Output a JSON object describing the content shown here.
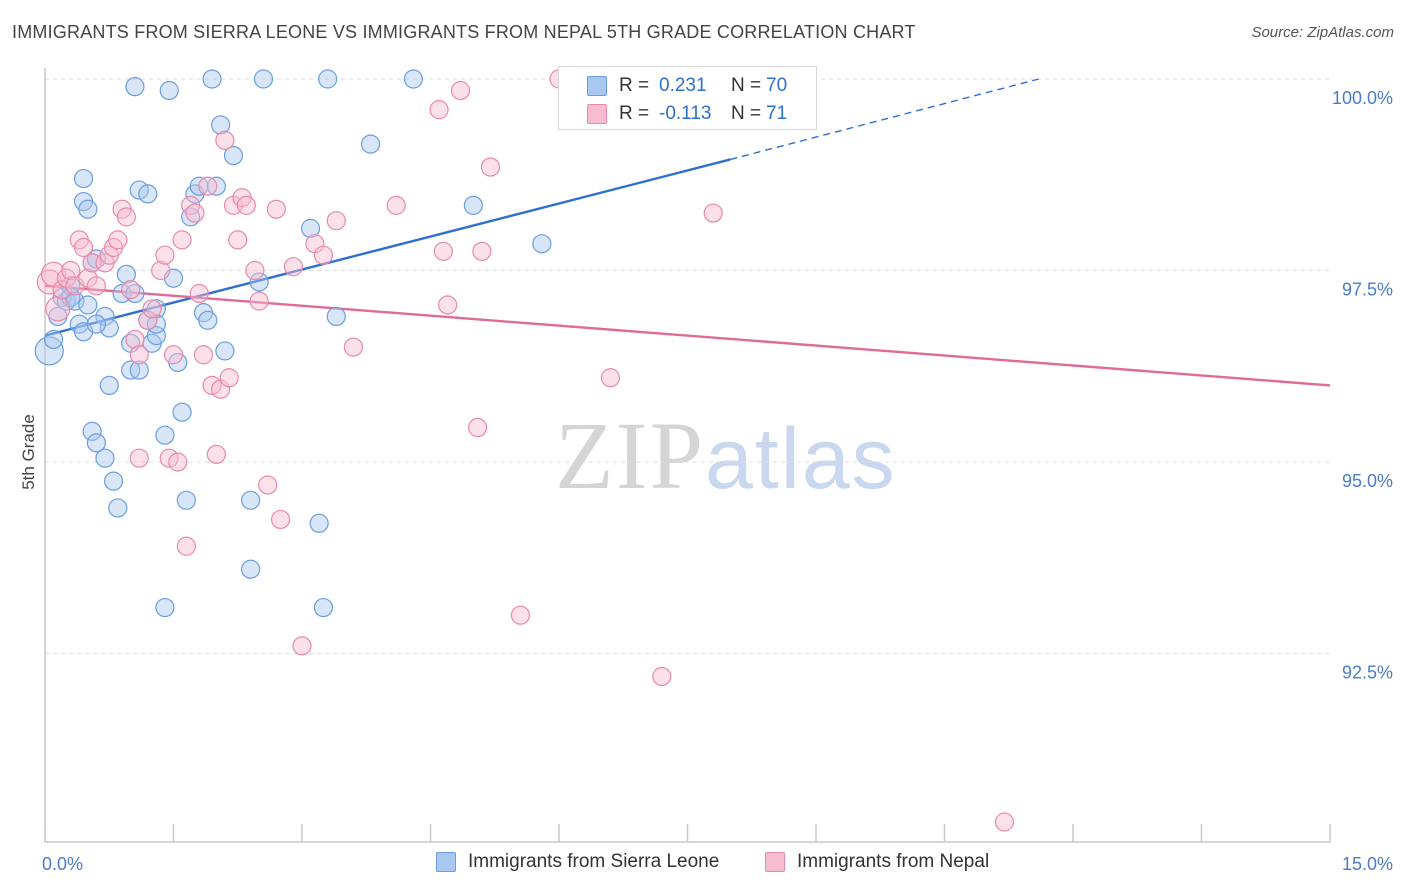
{
  "title": "IMMIGRANTS FROM SIERRA LEONE VS IMMIGRANTS FROM NEPAL 5TH GRADE CORRELATION CHART",
  "source": "Source: ZipAtlas.com",
  "watermark": {
    "zip": "ZIP",
    "atlas": "atlas"
  },
  "legend": {
    "rows": [
      {
        "r_label": "R =",
        "r_value": "0.231",
        "n_label": "N =",
        "n_value": "70",
        "color": "#a9c8f0",
        "border": "#6a9ee0"
      },
      {
        "r_label": "R =",
        "r_value": "-0.113",
        "n_label": "N =",
        "n_value": "71",
        "color": "#f8bcd0",
        "border": "#e88aaa"
      }
    ]
  },
  "bottom_legend": [
    {
      "label": "Immigrants from Sierra Leone",
      "color": "#a9c8f0",
      "border": "#6a9ee0"
    },
    {
      "label": "Immigrants from Nepal",
      "color": "#f8bcd0",
      "border": "#e88aaa"
    }
  ],
  "chart_data": {
    "type": "scatter",
    "title": "IMMIGRANTS FROM SIERRA LEONE VS IMMIGRANTS FROM NEPAL 5TH GRADE CORRELATION CHART",
    "xlabel": "",
    "ylabel": "5th Grade",
    "xlim": [
      0.0,
      15.0
    ],
    "ylim": [
      90.0,
      100.2
    ],
    "x_tick_labels": [
      {
        "value": 0.0,
        "label": "0.0%"
      },
      {
        "value": 15.0,
        "label": "15.0%"
      }
    ],
    "y_tick_labels": [
      {
        "value": 100.0,
        "label": "100.0%"
      },
      {
        "value": 97.5,
        "label": "97.5%"
      },
      {
        "value": 95.0,
        "label": "95.0%"
      },
      {
        "value": 92.5,
        "label": "92.5%"
      }
    ],
    "x_minor_ticks": [
      0,
      1.5,
      3,
      4.5,
      6,
      7.5,
      9,
      10.5,
      12,
      13.5,
      15
    ],
    "grid": true,
    "legend_position": "top-center",
    "series": [
      {
        "name": "Immigrants from Sierra Leone",
        "color": "#6a9ee0",
        "fill": "rgba(169,200,240,0.45)",
        "trend": {
          "x": [
            0.0,
            8.0
          ],
          "y": [
            96.65,
            98.95
          ],
          "dashed_extension": {
            "x": [
              8.0,
              11.6
            ],
            "y": [
              98.95,
              100.0
            ]
          },
          "color": "#2f6fd0"
        },
        "points": [
          [
            0.05,
            96.45
          ],
          [
            0.1,
            96.6
          ],
          [
            0.15,
            96.9
          ],
          [
            0.2,
            97.15
          ],
          [
            0.25,
            97.1
          ],
          [
            0.3,
            97.3
          ],
          [
            0.3,
            97.15
          ],
          [
            0.35,
            97.1
          ],
          [
            0.4,
            96.8
          ],
          [
            0.45,
            96.7
          ],
          [
            0.5,
            97.05
          ],
          [
            0.55,
            95.4
          ],
          [
            0.6,
            95.25
          ],
          [
            0.45,
            98.7
          ],
          [
            0.45,
            98.4
          ],
          [
            0.5,
            98.3
          ],
          [
            0.55,
            97.6
          ],
          [
            0.6,
            97.65
          ],
          [
            0.7,
            96.9
          ],
          [
            0.75,
            96.75
          ],
          [
            0.6,
            96.8
          ],
          [
            0.7,
            95.05
          ],
          [
            0.75,
            96.0
          ],
          [
            0.8,
            94.75
          ],
          [
            0.85,
            94.4
          ],
          [
            0.9,
            97.2
          ],
          [
            0.95,
            97.45
          ],
          [
            1.0,
            96.55
          ],
          [
            1.0,
            96.2
          ],
          [
            1.05,
            97.2
          ],
          [
            1.1,
            96.2
          ],
          [
            1.05,
            99.9
          ],
          [
            1.1,
            98.55
          ],
          [
            1.2,
            98.5
          ],
          [
            1.25,
            96.55
          ],
          [
            1.3,
            96.65
          ],
          [
            1.3,
            97.0
          ],
          [
            1.2,
            96.85
          ],
          [
            1.3,
            96.8
          ],
          [
            1.4,
            93.1
          ],
          [
            1.4,
            95.35
          ],
          [
            1.45,
            99.85
          ],
          [
            1.5,
            97.4
          ],
          [
            1.55,
            96.3
          ],
          [
            1.6,
            95.65
          ],
          [
            1.65,
            94.5
          ],
          [
            1.7,
            98.2
          ],
          [
            1.75,
            98.5
          ],
          [
            1.8,
            98.6
          ],
          [
            1.85,
            96.95
          ],
          [
            1.9,
            96.85
          ],
          [
            1.95,
            100.0
          ],
          [
            2.0,
            98.6
          ],
          [
            2.05,
            99.4
          ],
          [
            2.1,
            96.45
          ],
          [
            2.2,
            99.0
          ],
          [
            2.4,
            93.6
          ],
          [
            2.5,
            97.35
          ],
          [
            2.55,
            100.0
          ],
          [
            2.4,
            94.5
          ],
          [
            3.1,
            98.05
          ],
          [
            3.2,
            94.2
          ],
          [
            3.25,
            93.1
          ],
          [
            3.4,
            96.9
          ],
          [
            3.3,
            100.0
          ],
          [
            3.8,
            99.15
          ],
          [
            4.3,
            100.0
          ],
          [
            5.0,
            98.35
          ],
          [
            5.8,
            97.85
          ],
          [
            6.1,
            99.55
          ]
        ]
      },
      {
        "name": "Immigrants from Nepal",
        "color": "#e88aaa",
        "fill": "rgba(248,188,208,0.45)",
        "trend": {
          "x": [
            0.0,
            15.0
          ],
          "y": [
            97.3,
            96.0
          ],
          "color": "#e06a98"
        },
        "points": [
          [
            0.05,
            97.35
          ],
          [
            0.1,
            97.45
          ],
          [
            0.15,
            97.0
          ],
          [
            0.2,
            97.25
          ],
          [
            0.25,
            97.4
          ],
          [
            0.3,
            97.5
          ],
          [
            0.35,
            97.3
          ],
          [
            0.4,
            97.9
          ],
          [
            0.45,
            97.8
          ],
          [
            0.5,
            97.4
          ],
          [
            0.55,
            97.6
          ],
          [
            0.6,
            97.3
          ],
          [
            0.7,
            97.6
          ],
          [
            0.75,
            97.7
          ],
          [
            0.8,
            97.8
          ],
          [
            0.85,
            97.9
          ],
          [
            0.9,
            98.3
          ],
          [
            0.95,
            98.2
          ],
          [
            1.0,
            97.25
          ],
          [
            1.05,
            96.6
          ],
          [
            1.1,
            96.4
          ],
          [
            1.1,
            95.05
          ],
          [
            1.2,
            96.85
          ],
          [
            1.25,
            97.0
          ],
          [
            1.35,
            97.5
          ],
          [
            1.4,
            97.7
          ],
          [
            1.45,
            95.05
          ],
          [
            1.5,
            96.4
          ],
          [
            1.55,
            95.0
          ],
          [
            1.6,
            97.9
          ],
          [
            1.65,
            93.9
          ],
          [
            1.7,
            98.35
          ],
          [
            1.75,
            98.25
          ],
          [
            1.8,
            97.2
          ],
          [
            1.85,
            96.4
          ],
          [
            1.9,
            98.6
          ],
          [
            1.95,
            96.0
          ],
          [
            2.0,
            95.1
          ],
          [
            2.05,
            95.95
          ],
          [
            2.1,
            99.2
          ],
          [
            2.15,
            96.1
          ],
          [
            2.2,
            98.35
          ],
          [
            2.25,
            97.9
          ],
          [
            2.3,
            98.45
          ],
          [
            2.35,
            98.35
          ],
          [
            2.45,
            97.5
          ],
          [
            2.5,
            97.1
          ],
          [
            2.6,
            94.7
          ],
          [
            2.7,
            98.3
          ],
          [
            2.75,
            94.25
          ],
          [
            2.9,
            97.55
          ],
          [
            3.0,
            92.6
          ],
          [
            3.15,
            97.85
          ],
          [
            3.25,
            97.7
          ],
          [
            3.4,
            98.15
          ],
          [
            3.6,
            96.5
          ],
          [
            4.1,
            98.35
          ],
          [
            4.6,
            99.6
          ],
          [
            4.65,
            97.75
          ],
          [
            4.7,
            97.05
          ],
          [
            4.85,
            99.85
          ],
          [
            5.05,
            95.45
          ],
          [
            5.1,
            97.75
          ],
          [
            5.2,
            98.85
          ],
          [
            5.55,
            93.0
          ],
          [
            6.0,
            100.0
          ],
          [
            6.6,
            96.1
          ],
          [
            7.1,
            100.0
          ],
          [
            7.2,
            92.2
          ],
          [
            7.8,
            98.25
          ],
          [
            11.2,
            90.3
          ]
        ]
      }
    ]
  }
}
